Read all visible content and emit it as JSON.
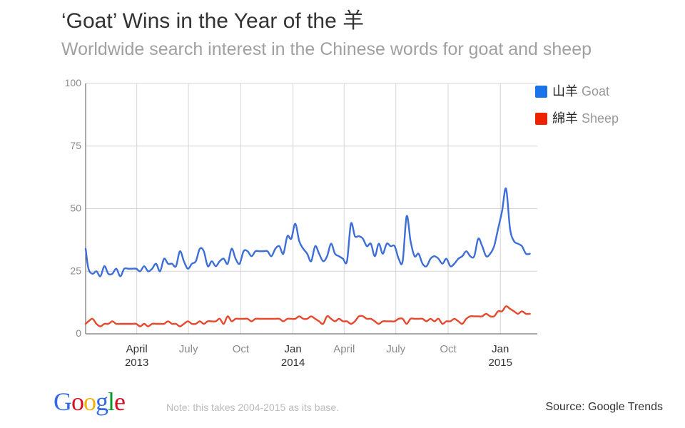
{
  "title": "‘Goat’ Wins in the Year of the 羊",
  "subtitle": "Worldwide search interest in the Chinese words for goat and sheep",
  "note": "Note: this takes 2004-2015 as its base.",
  "source": "Source: Google Trends",
  "logo": {
    "letters": [
      "G",
      "o",
      "o",
      "g",
      "l",
      "e"
    ],
    "colors": [
      "#3369e8",
      "#d50f25",
      "#eeb211",
      "#3369e8",
      "#009925",
      "#d50f25"
    ]
  },
  "legend": [
    {
      "zh": "山羊",
      "en": "Goat",
      "color": "#1a73e8"
    },
    {
      "zh": "綿羊",
      "en": "Sheep",
      "color": "#ee2200"
    }
  ],
  "chart_data": {
    "type": "line",
    "title": "‘Goat’ Wins in the Year of the 羊",
    "subtitle": "Worldwide search interest in the Chinese words for goat and sheep",
    "xlabel": "",
    "ylabel": "",
    "ylim": [
      0,
      100
    ],
    "xlim": [
      "2013-01-01",
      "2015-03-07"
    ],
    "grid": true,
    "legend_position": "right",
    "yticks": [
      {
        "value": 0,
        "label": "0"
      },
      {
        "value": 25,
        "label": "25"
      },
      {
        "value": 50,
        "label": "50"
      },
      {
        "value": 75,
        "label": "75"
      },
      {
        "value": 100,
        "label": "100"
      }
    ],
    "xticks": [
      {
        "date": "2013-04-01",
        "label": "April",
        "sublabel": "2013"
      },
      {
        "date": "2013-07-01",
        "label": "July",
        "sublabel": ""
      },
      {
        "date": "2013-10-01",
        "label": "Oct",
        "sublabel": ""
      },
      {
        "date": "2014-01-01",
        "label": "Jan",
        "sublabel": "2014"
      },
      {
        "date": "2014-04-01",
        "label": "April",
        "sublabel": ""
      },
      {
        "date": "2014-07-01",
        "label": "July",
        "sublabel": ""
      },
      {
        "date": "2014-10-01",
        "label": "Oct",
        "sublabel": ""
      },
      {
        "date": "2015-01-01",
        "label": "Jan",
        "sublabel": "2015"
      }
    ],
    "series": [
      {
        "name": "山羊 Goat",
        "color": "#3d6ed6",
        "points": [
          [
            "2013-01-01",
            34
          ],
          [
            "2013-01-06",
            26
          ],
          [
            "2013-01-13",
            24
          ],
          [
            "2013-01-20",
            25
          ],
          [
            "2013-01-27",
            23
          ],
          [
            "2013-02-03",
            27
          ],
          [
            "2013-02-10",
            24
          ],
          [
            "2013-02-17",
            24
          ],
          [
            "2013-02-24",
            26
          ],
          [
            "2013-03-03",
            23
          ],
          [
            "2013-03-10",
            26
          ],
          [
            "2013-03-17",
            26
          ],
          [
            "2013-03-24",
            26
          ],
          [
            "2013-03-31",
            26
          ],
          [
            "2013-04-07",
            25
          ],
          [
            "2013-04-14",
            27
          ],
          [
            "2013-04-21",
            25
          ],
          [
            "2013-04-28",
            26
          ],
          [
            "2013-05-05",
            28
          ],
          [
            "2013-05-12",
            25
          ],
          [
            "2013-05-19",
            30
          ],
          [
            "2013-05-26",
            28
          ],
          [
            "2013-06-02",
            28
          ],
          [
            "2013-06-09",
            27
          ],
          [
            "2013-06-16",
            33
          ],
          [
            "2013-06-23",
            29
          ],
          [
            "2013-06-30",
            26
          ],
          [
            "2013-07-07",
            28
          ],
          [
            "2013-07-14",
            29
          ],
          [
            "2013-07-21",
            34
          ],
          [
            "2013-07-28",
            33
          ],
          [
            "2013-08-04",
            27
          ],
          [
            "2013-08-11",
            29
          ],
          [
            "2013-08-18",
            27
          ],
          [
            "2013-08-25",
            29
          ],
          [
            "2013-09-01",
            30
          ],
          [
            "2013-09-08",
            28
          ],
          [
            "2013-09-15",
            34
          ],
          [
            "2013-09-22",
            30
          ],
          [
            "2013-09-29",
            28
          ],
          [
            "2013-10-06",
            33
          ],
          [
            "2013-10-13",
            33
          ],
          [
            "2013-10-20",
            31
          ],
          [
            "2013-10-27",
            33
          ],
          [
            "2013-11-03",
            33
          ],
          [
            "2013-11-10",
            33
          ],
          [
            "2013-11-17",
            33
          ],
          [
            "2013-11-24",
            31
          ],
          [
            "2013-12-01",
            34
          ],
          [
            "2013-12-08",
            35
          ],
          [
            "2013-12-15",
            32
          ],
          [
            "2013-12-22",
            39
          ],
          [
            "2013-12-29",
            38
          ],
          [
            "2014-01-05",
            44
          ],
          [
            "2014-01-12",
            37
          ],
          [
            "2014-01-19",
            34
          ],
          [
            "2014-01-26",
            32
          ],
          [
            "2014-02-02",
            29
          ],
          [
            "2014-02-09",
            35
          ],
          [
            "2014-02-16",
            32
          ],
          [
            "2014-02-23",
            29
          ],
          [
            "2014-03-02",
            31
          ],
          [
            "2014-03-09",
            36
          ],
          [
            "2014-03-16",
            32
          ],
          [
            "2014-03-23",
            31
          ],
          [
            "2014-03-30",
            30
          ],
          [
            "2014-04-06",
            29
          ],
          [
            "2014-04-13",
            44
          ],
          [
            "2014-04-20",
            39
          ],
          [
            "2014-04-27",
            39
          ],
          [
            "2014-05-04",
            38
          ],
          [
            "2014-05-11",
            35
          ],
          [
            "2014-05-18",
            36
          ],
          [
            "2014-05-25",
            31
          ],
          [
            "2014-06-01",
            36
          ],
          [
            "2014-06-08",
            32
          ],
          [
            "2014-06-15",
            36
          ],
          [
            "2014-06-22",
            35
          ],
          [
            "2014-06-29",
            35
          ],
          [
            "2014-07-06",
            30
          ],
          [
            "2014-07-13",
            29
          ],
          [
            "2014-07-20",
            47
          ],
          [
            "2014-07-27",
            37
          ],
          [
            "2014-08-03",
            31
          ],
          [
            "2014-08-10",
            32
          ],
          [
            "2014-08-17",
            28
          ],
          [
            "2014-08-24",
            27
          ],
          [
            "2014-08-31",
            30
          ],
          [
            "2014-09-07",
            31
          ],
          [
            "2014-09-14",
            30
          ],
          [
            "2014-09-21",
            28
          ],
          [
            "2014-09-28",
            30
          ],
          [
            "2014-10-05",
            27
          ],
          [
            "2014-10-12",
            28
          ],
          [
            "2014-10-19",
            30
          ],
          [
            "2014-10-26",
            31
          ],
          [
            "2014-11-02",
            33
          ],
          [
            "2014-11-09",
            31
          ],
          [
            "2014-11-16",
            31
          ],
          [
            "2014-11-23",
            38
          ],
          [
            "2014-11-30",
            35
          ],
          [
            "2014-12-07",
            31
          ],
          [
            "2014-12-14",
            32
          ],
          [
            "2014-12-21",
            35
          ],
          [
            "2014-12-28",
            42
          ],
          [
            "2015-01-04",
            49
          ],
          [
            "2015-01-11",
            58
          ],
          [
            "2015-01-18",
            42
          ],
          [
            "2015-01-25",
            37
          ],
          [
            "2015-02-01",
            36
          ],
          [
            "2015-02-08",
            35
          ],
          [
            "2015-02-15",
            32
          ],
          [
            "2015-02-22",
            32
          ]
        ]
      },
      {
        "name": "綿羊 Sheep",
        "color": "#e8472b",
        "points": [
          [
            "2013-01-01",
            4
          ],
          [
            "2013-01-06",
            5
          ],
          [
            "2013-01-13",
            6
          ],
          [
            "2013-01-20",
            4
          ],
          [
            "2013-01-27",
            3
          ],
          [
            "2013-02-03",
            4
          ],
          [
            "2013-02-10",
            4
          ],
          [
            "2013-02-17",
            5
          ],
          [
            "2013-02-24",
            4
          ],
          [
            "2013-03-03",
            4
          ],
          [
            "2013-03-10",
            4
          ],
          [
            "2013-03-17",
            4
          ],
          [
            "2013-03-24",
            4
          ],
          [
            "2013-03-31",
            4
          ],
          [
            "2013-04-07",
            3
          ],
          [
            "2013-04-14",
            4
          ],
          [
            "2013-04-21",
            3
          ],
          [
            "2013-04-28",
            4
          ],
          [
            "2013-05-05",
            4
          ],
          [
            "2013-05-12",
            4
          ],
          [
            "2013-05-19",
            4
          ],
          [
            "2013-05-26",
            5
          ],
          [
            "2013-06-02",
            4
          ],
          [
            "2013-06-09",
            4
          ],
          [
            "2013-06-16",
            3
          ],
          [
            "2013-06-23",
            4
          ],
          [
            "2013-06-30",
            5
          ],
          [
            "2013-07-07",
            4
          ],
          [
            "2013-07-14",
            4
          ],
          [
            "2013-07-21",
            5
          ],
          [
            "2013-07-28",
            4
          ],
          [
            "2013-08-04",
            5
          ],
          [
            "2013-08-11",
            5
          ],
          [
            "2013-08-18",
            5
          ],
          [
            "2013-08-25",
            6
          ],
          [
            "2013-09-01",
            4
          ],
          [
            "2013-09-08",
            7
          ],
          [
            "2013-09-15",
            5
          ],
          [
            "2013-09-22",
            6
          ],
          [
            "2013-09-29",
            6
          ],
          [
            "2013-10-06",
            6
          ],
          [
            "2013-10-13",
            6
          ],
          [
            "2013-10-20",
            5
          ],
          [
            "2013-10-27",
            6
          ],
          [
            "2013-11-03",
            6
          ],
          [
            "2013-11-10",
            6
          ],
          [
            "2013-11-17",
            6
          ],
          [
            "2013-11-24",
            6
          ],
          [
            "2013-12-01",
            6
          ],
          [
            "2013-12-08",
            6
          ],
          [
            "2013-12-15",
            5
          ],
          [
            "2013-12-22",
            6
          ],
          [
            "2013-12-29",
            6
          ],
          [
            "2014-01-05",
            6
          ],
          [
            "2014-01-12",
            7
          ],
          [
            "2014-01-19",
            6
          ],
          [
            "2014-01-26",
            6
          ],
          [
            "2014-02-02",
            7
          ],
          [
            "2014-02-09",
            6
          ],
          [
            "2014-02-16",
            5
          ],
          [
            "2014-02-23",
            4
          ],
          [
            "2014-03-02",
            7
          ],
          [
            "2014-03-09",
            6
          ],
          [
            "2014-03-16",
            5
          ],
          [
            "2014-03-23",
            6
          ],
          [
            "2014-03-30",
            5
          ],
          [
            "2014-04-06",
            5
          ],
          [
            "2014-04-13",
            4
          ],
          [
            "2014-04-20",
            5
          ],
          [
            "2014-04-27",
            7
          ],
          [
            "2014-05-04",
            7
          ],
          [
            "2014-05-11",
            6
          ],
          [
            "2014-05-18",
            6
          ],
          [
            "2014-05-25",
            5
          ],
          [
            "2014-06-01",
            4
          ],
          [
            "2014-06-08",
            5
          ],
          [
            "2014-06-15",
            5
          ],
          [
            "2014-06-22",
            5
          ],
          [
            "2014-06-29",
            5
          ],
          [
            "2014-07-06",
            6
          ],
          [
            "2014-07-13",
            6
          ],
          [
            "2014-07-20",
            4
          ],
          [
            "2014-07-27",
            6
          ],
          [
            "2014-08-03",
            6
          ],
          [
            "2014-08-10",
            6
          ],
          [
            "2014-08-17",
            6
          ],
          [
            "2014-08-24",
            5
          ],
          [
            "2014-08-31",
            6
          ],
          [
            "2014-09-07",
            5
          ],
          [
            "2014-09-14",
            6
          ],
          [
            "2014-09-21",
            4
          ],
          [
            "2014-09-28",
            5
          ],
          [
            "2014-10-05",
            5
          ],
          [
            "2014-10-12",
            6
          ],
          [
            "2014-10-19",
            5
          ],
          [
            "2014-10-26",
            4
          ],
          [
            "2014-11-02",
            6
          ],
          [
            "2014-11-09",
            7
          ],
          [
            "2014-11-16",
            7
          ],
          [
            "2014-11-23",
            7
          ],
          [
            "2014-11-30",
            7
          ],
          [
            "2014-12-07",
            8
          ],
          [
            "2014-12-14",
            7
          ],
          [
            "2014-12-21",
            7
          ],
          [
            "2014-12-28",
            9
          ],
          [
            "2015-01-04",
            9
          ],
          [
            "2015-01-11",
            11
          ],
          [
            "2015-01-18",
            10
          ],
          [
            "2015-01-25",
            9
          ],
          [
            "2015-02-01",
            8
          ],
          [
            "2015-02-08",
            9
          ],
          [
            "2015-02-15",
            8
          ],
          [
            "2015-02-22",
            8
          ]
        ]
      }
    ]
  }
}
